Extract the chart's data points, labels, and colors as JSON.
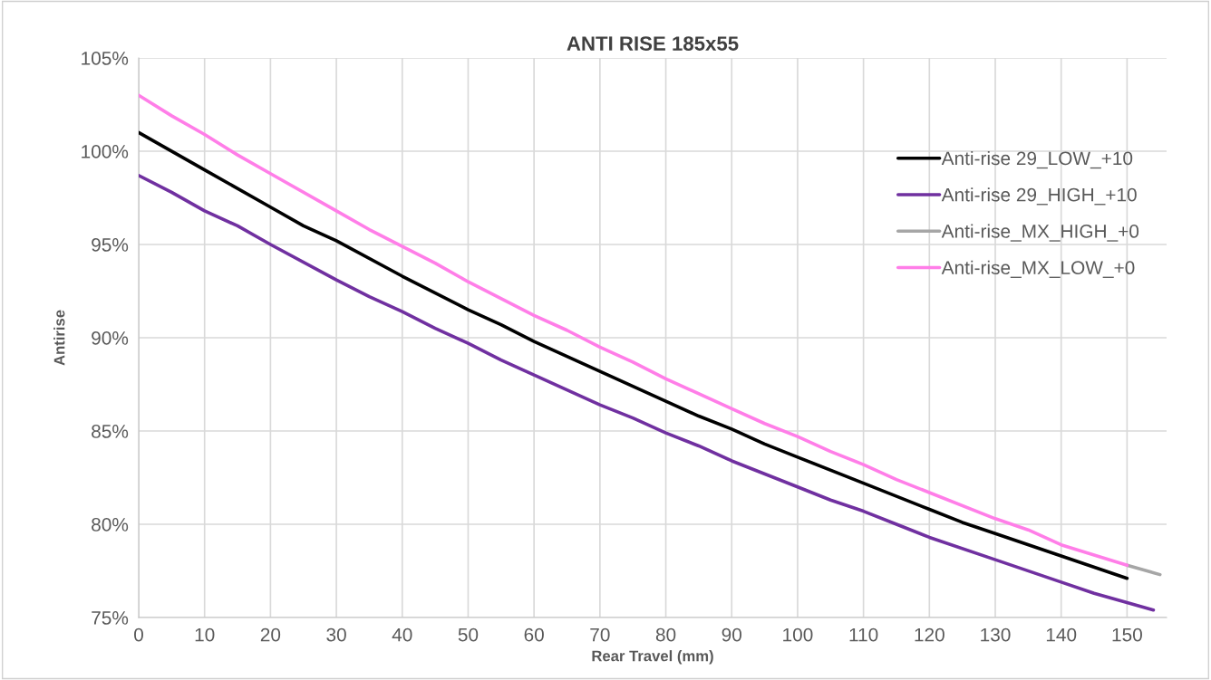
{
  "chart_data": {
    "type": "line",
    "title": "ANTI RISE 185x55",
    "xlabel": "Rear Travel (mm)",
    "ylabel": "Antirise",
    "xlim": [
      0,
      156
    ],
    "xticks": [
      0,
      10,
      20,
      30,
      40,
      50,
      60,
      70,
      80,
      90,
      100,
      110,
      120,
      130,
      140,
      150
    ],
    "ylim": [
      75,
      105
    ],
    "yticks": [
      {
        "value": 75,
        "label": "75%"
      },
      {
        "value": 80,
        "label": "80%"
      },
      {
        "value": 85,
        "label": "85%"
      },
      {
        "value": 90,
        "label": "90%"
      },
      {
        "value": 95,
        "label": "95%"
      },
      {
        "value": 100,
        "label": "100%"
      },
      {
        "value": 105,
        "label": "105%"
      }
    ],
    "grid": true,
    "legend": "right",
    "marker": "none",
    "line_style": "solid",
    "series": [
      {
        "name": "Anti-rise 29_LOW_+10",
        "color": "#000000",
        "x": [
          0,
          10,
          20,
          25,
          30,
          40,
          50,
          55,
          60,
          70,
          80,
          85,
          90,
          95,
          100,
          110,
          120,
          125,
          130,
          140,
          150
        ],
        "values": [
          101.0,
          99.0,
          97.0,
          96.0,
          95.2,
          93.3,
          91.5,
          90.7,
          89.8,
          88.2,
          86.6,
          85.8,
          85.1,
          84.3,
          83.6,
          82.2,
          80.8,
          80.1,
          79.5,
          78.3,
          77.1
        ]
      },
      {
        "name": "Anti-rise 29_HIGH_+10",
        "color": "#7030a0",
        "x": [
          0,
          5,
          10,
          15,
          20,
          30,
          35,
          40,
          45,
          50,
          55,
          60,
          70,
          75,
          80,
          85,
          90,
          100,
          105,
          110,
          115,
          120,
          130,
          140,
          145,
          150,
          154
        ],
        "values": [
          98.7,
          97.8,
          96.8,
          96.0,
          95.0,
          93.1,
          92.2,
          91.4,
          90.5,
          89.7,
          88.8,
          88.0,
          86.4,
          85.7,
          84.9,
          84.2,
          83.4,
          82.0,
          81.3,
          80.7,
          80.0,
          79.3,
          78.1,
          76.9,
          76.3,
          75.8,
          75.4
        ]
      },
      {
        "name": "Anti-rise_MX_HIGH_+0",
        "color": "#a6a6a6",
        "x": [
          150,
          155
        ],
        "values": [
          77.8,
          77.3
        ]
      },
      {
        "name": "Anti-rise_MX_LOW_+0",
        "color": "#ff7ee8",
        "x": [
          0,
          5,
          10,
          15,
          20,
          30,
          35,
          40,
          45,
          50,
          60,
          65,
          70,
          75,
          80,
          90,
          95,
          100,
          105,
          110,
          115,
          120,
          130,
          135,
          140,
          150
        ],
        "values": [
          103.0,
          101.9,
          100.9,
          99.8,
          98.8,
          96.8,
          95.8,
          94.9,
          94.0,
          93.0,
          91.2,
          90.4,
          89.5,
          88.7,
          87.8,
          86.2,
          85.4,
          84.7,
          83.9,
          83.2,
          82.4,
          81.7,
          80.3,
          79.7,
          78.9,
          77.8
        ]
      }
    ]
  }
}
